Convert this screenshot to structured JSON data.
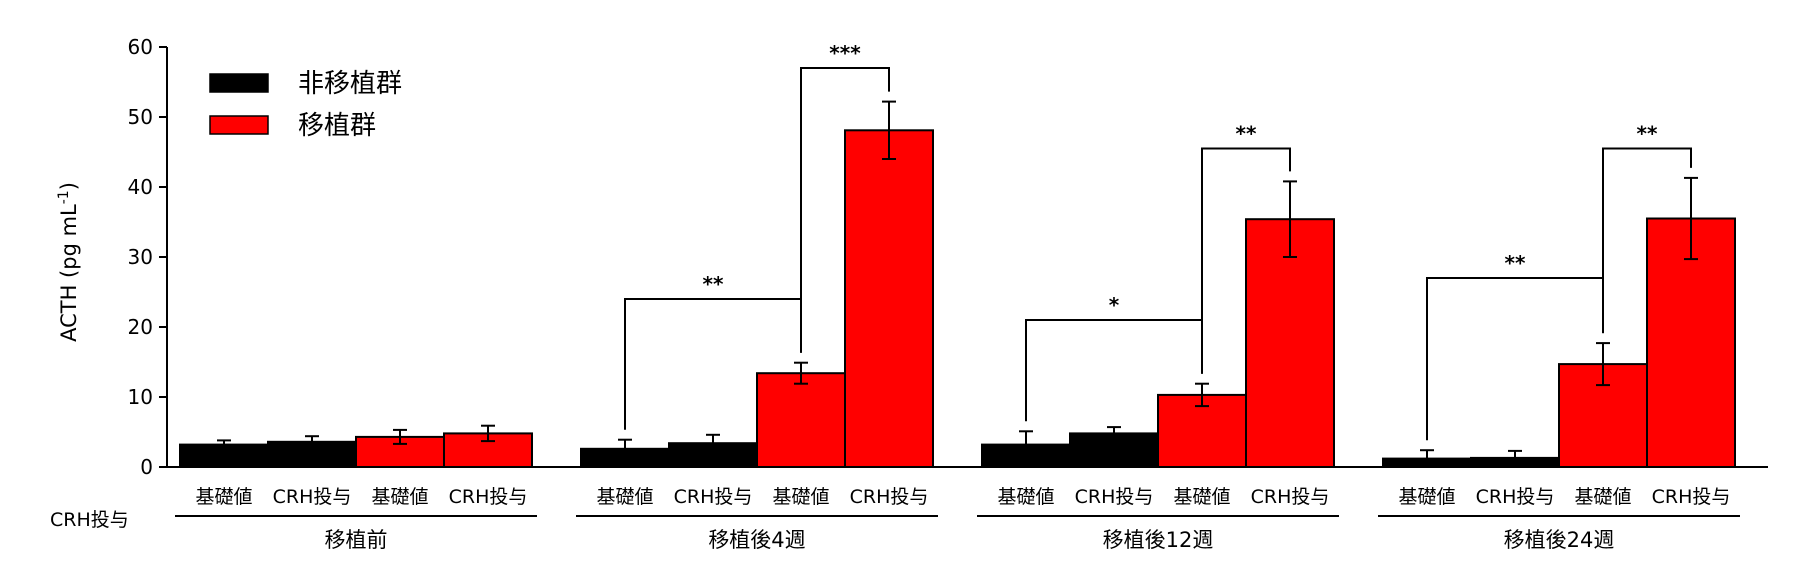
{
  "chart_data": {
    "type": "bar",
    "ylabel": "ACTH (pg mL",
    "ylabel_sup": "-1",
    "ylabel_end": ")",
    "ylim": [
      0,
      60
    ],
    "yticks": [
      0,
      10,
      20,
      30,
      40,
      50,
      60
    ],
    "legend_position": "top-left",
    "series": [
      {
        "name": "非移植群",
        "color": "#000000"
      },
      {
        "name": "移植群",
        "color": "#ff0000"
      }
    ],
    "row_label": "CRH投与",
    "condition_labels": [
      "基礎値",
      "CRH投与"
    ],
    "groups": [
      {
        "label": "移植前",
        "bars": [
          {
            "series": 0,
            "condition": 0,
            "value": 3.2,
            "error": 0.6
          },
          {
            "series": 0,
            "condition": 1,
            "value": 3.6,
            "error": 0.8
          },
          {
            "series": 1,
            "condition": 0,
            "value": 4.3,
            "error": 1.0
          },
          {
            "series": 1,
            "condition": 1,
            "value": 4.8,
            "error": 1.1
          }
        ]
      },
      {
        "label": "移植後4週",
        "bars": [
          {
            "series": 0,
            "condition": 0,
            "value": 2.6,
            "error": 1.3
          },
          {
            "series": 0,
            "condition": 1,
            "value": 3.4,
            "error": 1.2
          },
          {
            "series": 1,
            "condition": 0,
            "value": 13.4,
            "error": 1.5
          },
          {
            "series": 1,
            "condition": 1,
            "value": 48.1,
            "error": 4.1
          }
        ]
      },
      {
        "label": "移植後12週",
        "bars": [
          {
            "series": 0,
            "condition": 0,
            "value": 3.2,
            "error": 1.9
          },
          {
            "series": 0,
            "condition": 1,
            "value": 4.8,
            "error": 0.9
          },
          {
            "series": 1,
            "condition": 0,
            "value": 10.3,
            "error": 1.6
          },
          {
            "series": 1,
            "condition": 1,
            "value": 35.4,
            "error": 5.4
          }
        ]
      },
      {
        "label": "移植後24週",
        "bars": [
          {
            "series": 0,
            "condition": 0,
            "value": 1.2,
            "error": 1.2
          },
          {
            "series": 0,
            "condition": 1,
            "value": 1.3,
            "error": 1.0
          },
          {
            "series": 1,
            "condition": 0,
            "value": 14.7,
            "error": 3.0
          },
          {
            "series": 1,
            "condition": 1,
            "value": 35.5,
            "error": 5.8
          }
        ]
      }
    ],
    "significance": [
      {
        "group": 1,
        "from_bar": 0,
        "to_bar": 2,
        "label": "**",
        "level": 24
      },
      {
        "group": 1,
        "from_bar": 2,
        "to_bar": 3,
        "label": "***",
        "level": 57
      },
      {
        "group": 2,
        "from_bar": 0,
        "to_bar": 2,
        "label": "*",
        "level": 21
      },
      {
        "group": 2,
        "from_bar": 2,
        "to_bar": 3,
        "label": "**",
        "level": 45.5
      },
      {
        "group": 3,
        "from_bar": 0,
        "to_bar": 2,
        "label": "**",
        "level": 27
      },
      {
        "group": 3,
        "from_bar": 2,
        "to_bar": 3,
        "label": "**",
        "level": 45.5
      }
    ]
  }
}
